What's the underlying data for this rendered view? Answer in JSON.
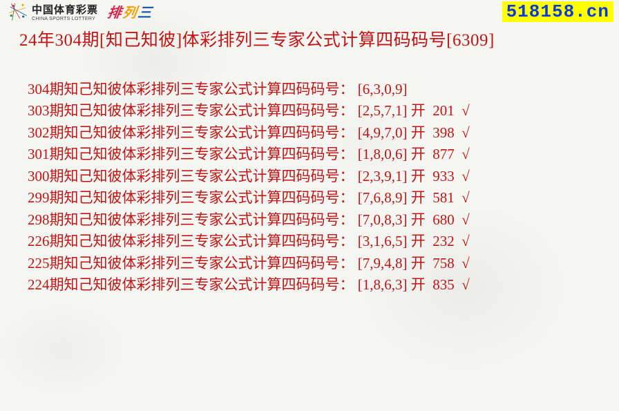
{
  "colors": {
    "text_red": "#c21414",
    "badge_bg": "#ffff00",
    "badge_fg": "#0a3ad8",
    "page_bg": "#f5f5f2",
    "pailie_char1": "#d8254a",
    "pailie_char2": "#f2a208",
    "pailie_char3": "#1c5aa4"
  },
  "header": {
    "lottery_name_cn": "中国体育彩票",
    "lottery_name_en": "CHINA SPORTS LOTTERY",
    "pailie_chars": [
      "排",
      "列",
      "三"
    ],
    "site_badge": "518158.cn"
  },
  "title": "24年304期[知己知彼]体彩排列三专家公式计算四码码号[6309]",
  "label_prefix_suffix": "期知己知彼体彩排列三专家公式计算四码码号：",
  "open_label": "开",
  "check_mark": "√",
  "entries": [
    {
      "period": "304",
      "codes": "[6,3,0,9]",
      "open": "",
      "hit": false
    },
    {
      "period": "303",
      "codes": "[2,5,7,1]",
      "open": "201",
      "hit": true
    },
    {
      "period": "302",
      "codes": "[4,9,7,0]",
      "open": "398",
      "hit": true
    },
    {
      "period": "301",
      "codes": "[1,8,0,6]",
      "open": "877",
      "hit": true
    },
    {
      "period": "300",
      "codes": "[2,3,9,1]",
      "open": "933",
      "hit": true
    },
    {
      "period": "299",
      "codes": "[7,6,8,9]",
      "open": "581",
      "hit": true
    },
    {
      "period": "298",
      "codes": "[7,0,8,3]",
      "open": "680",
      "hit": true
    },
    {
      "period": "226",
      "codes": "[3,1,6,5]",
      "open": "232",
      "hit": true
    },
    {
      "period": "225",
      "codes": "[7,9,4,8]",
      "open": "758",
      "hit": true
    },
    {
      "period": "224",
      "codes": "[1,8,6,3]",
      "open": "835",
      "hit": true
    }
  ]
}
